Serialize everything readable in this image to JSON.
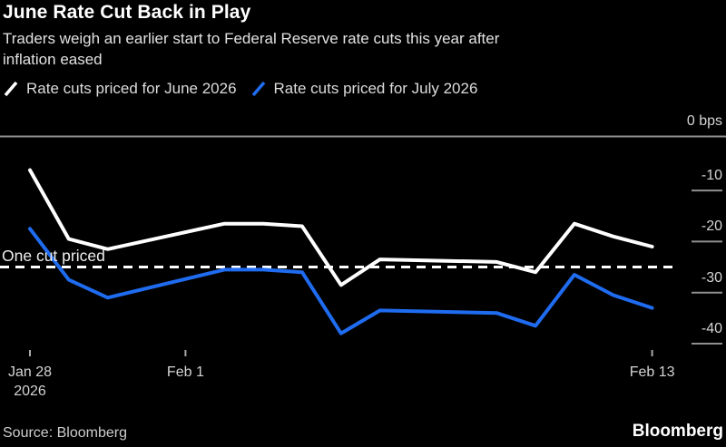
{
  "header": {
    "title": "June Rate Cut Back in Play",
    "subtitle": "Traders weigh an earlier start to Federal Reserve rate cuts this year after\ninflation eased"
  },
  "legend": {
    "items": [
      {
        "label": "Rate cuts priced for June 2026",
        "color": "#ffffff"
      },
      {
        "label": "Rate cuts priced for July 2026",
        "color": "#1f6cf0"
      }
    ]
  },
  "chart_data": {
    "type": "line",
    "title": "June Rate Cut Back in Play",
    "unit": "bps",
    "x": [
      "Jan 28",
      "Jan 29",
      "Jan 30",
      "Feb 2",
      "Feb 3",
      "Feb 4",
      "Feb 5",
      "Feb 6",
      "Feb 9",
      "Feb 10",
      "Feb 11",
      "Feb 12",
      "Feb 13"
    ],
    "x_day_offsets": [
      0,
      1,
      2,
      5,
      6,
      7,
      8,
      9,
      12,
      13,
      14,
      15,
      16
    ],
    "series": [
      {
        "name": "Rate cuts priced for June 2026",
        "color": "#ffffff",
        "values": [
          -6,
          -19.5,
          -21.5,
          -16.5,
          -16.5,
          -17,
          -28.5,
          -23.5,
          -24,
          -26,
          -16.5,
          -19,
          -21
        ]
      },
      {
        "name": "Rate cuts priced for July 2026",
        "color": "#1f6cf0",
        "values": [
          -17.5,
          -27.5,
          -31,
          -25.5,
          -25.5,
          -26,
          -38,
          -33.5,
          -34,
          -36.5,
          -26.5,
          -30.5,
          -33
        ]
      }
    ],
    "ylim": [
      -42,
      0
    ],
    "y_ticks": [
      {
        "label": "0 bps",
        "value": 0
      },
      {
        "label": "-10",
        "value": -10
      },
      {
        "label": "-20",
        "value": -20
      },
      {
        "label": "-30",
        "value": -30
      },
      {
        "label": "-40",
        "value": -40
      }
    ],
    "x_ticks": [
      {
        "label": "Jan 28",
        "sublabel": "2026",
        "day": 0
      },
      {
        "label": "Feb 1",
        "sublabel": "",
        "day": 4
      },
      {
        "label": "Feb 13",
        "sublabel": "",
        "day": 16
      }
    ],
    "annotation": {
      "label": "One cut priced",
      "value": -25,
      "line_style": "dashed"
    },
    "grid": "none",
    "legend_position": "top"
  },
  "footer": {
    "source": "Source: Bloomberg",
    "logo": "Bloomberg"
  }
}
